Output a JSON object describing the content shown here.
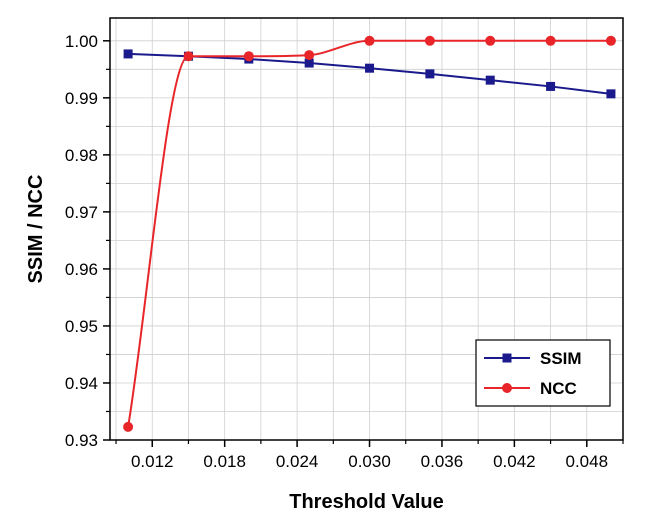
{
  "chart_data": {
    "type": "line",
    "xlabel": "Threshold Value",
    "ylabel": "SSIM / NCC",
    "xlim": [
      0.0085,
      0.051
    ],
    "ylim": [
      0.93,
      1.004
    ],
    "x_ticks": [
      0.012,
      0.018,
      0.024,
      0.03,
      0.036,
      0.042,
      0.048
    ],
    "x_tick_labels": [
      "0.012",
      "0.018",
      "0.024",
      "0.030",
      "0.036",
      "0.042",
      "0.048"
    ],
    "y_ticks": [
      0.93,
      0.94,
      0.95,
      0.96,
      0.97,
      0.98,
      0.99,
      1.0
    ],
    "y_tick_labels": [
      "0.93",
      "0.94",
      "0.95",
      "0.96",
      "0.97",
      "0.98",
      "0.99",
      "1.00"
    ],
    "grid": true,
    "legend_position": "bottom-right",
    "x": [
      0.01,
      0.015,
      0.02,
      0.025,
      0.03,
      0.035,
      0.04,
      0.045,
      0.05
    ],
    "series": [
      {
        "name": "SSIM",
        "color": "#1a1a8c",
        "marker": "square",
        "values": [
          0.9977,
          0.9973,
          0.9968,
          0.9961,
          0.9952,
          0.9942,
          0.9931,
          0.992,
          0.9907
        ]
      },
      {
        "name": "NCC",
        "color": "#e8262a",
        "marker": "circle",
        "values": [
          0.9323,
          0.9973,
          0.9973,
          0.9975,
          1.0,
          1.0,
          1.0,
          1.0,
          1.0
        ]
      }
    ]
  }
}
